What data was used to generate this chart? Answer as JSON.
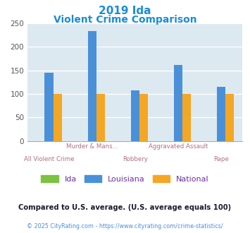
{
  "title_line1": "2019 Ida",
  "title_line2": "Violent Crime Comparison",
  "title_color": "#1a8cd8",
  "groups": [
    "All Violent Crime",
    "Murder & Mans...",
    "Robbery",
    "Aggravated Assault",
    "Rape"
  ],
  "ida_values": [
    0,
    0,
    0,
    0,
    0
  ],
  "louisiana_values": [
    145,
    233,
    107,
    161,
    115
  ],
  "national_values": [
    100,
    100,
    100,
    100,
    100
  ],
  "ida_color": "#7dc242",
  "louisiana_color": "#4a90d9",
  "national_color": "#f5a623",
  "ylim": [
    0,
    250
  ],
  "yticks": [
    0,
    50,
    100,
    150,
    200,
    250
  ],
  "bg_color": "#dde9f0",
  "fig_bg": "#ffffff",
  "legend_labels": [
    "Ida",
    "Louisiana",
    "National"
  ],
  "legend_label_color": "#7030a0",
  "footer_text": "Compared to U.S. average. (U.S. average equals 100)",
  "footer_color": "#1a1a2e",
  "credit_text": "© 2025 CityRating.com - https://www.cityrating.com/crime-statistics/",
  "credit_color": "#4a90d9",
  "xticklabel_color": "#b07080",
  "grid_color": "#ffffff",
  "label_row1": [
    "",
    "Murder & Mans...",
    "",
    "Aggravated Assault",
    ""
  ],
  "label_row2": [
    "All Violent Crime",
    "",
    "Robbery",
    "",
    "Rape"
  ]
}
